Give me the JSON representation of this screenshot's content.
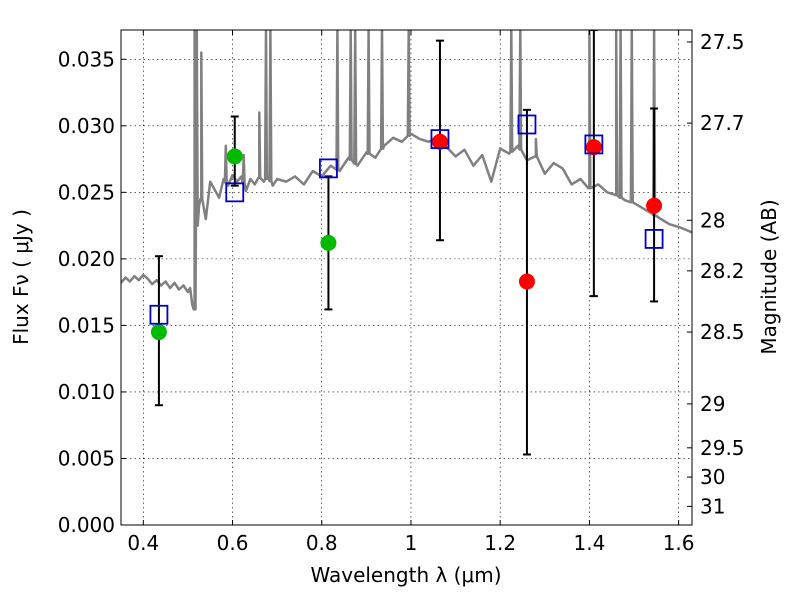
{
  "chart_data": {
    "type": "scatter",
    "xlabel": "Wavelength  λ (μm)",
    "ylabel": "Flux  Fν  ( μJy )",
    "y2label": "Magnitude (AB)",
    "xlim": [
      0.35,
      1.63
    ],
    "ylim": [
      0.0,
      0.0372
    ],
    "x_ticks": [
      "0.4",
      "0.6",
      "0.8",
      "1",
      "1.2",
      "1.4",
      "1.6"
    ],
    "x_tick_values": [
      0.4,
      0.6,
      0.8,
      1.0,
      1.2,
      1.4,
      1.6
    ],
    "y_ticks": [
      "0.000",
      "0.005",
      "0.010",
      "0.015",
      "0.020",
      "0.025",
      "0.030",
      "0.035"
    ],
    "y_tick_values": [
      0.0,
      0.005,
      0.01,
      0.015,
      0.02,
      0.025,
      0.03,
      0.035
    ],
    "y2_ticks": [
      {
        "label": "27.5",
        "flux": 0.0363
      },
      {
        "label": "27.7",
        "flux": 0.0302
      },
      {
        "label": "28",
        "flux": 0.0229
      },
      {
        "label": "28.2",
        "flux": 0.0191
      },
      {
        "label": "28.5",
        "flux": 0.0145
      },
      {
        "label": "29",
        "flux": 0.0091
      },
      {
        "label": "29.5",
        "flux": 0.0058
      },
      {
        "label": "30",
        "flux": 0.0036
      },
      {
        "label": "31",
        "flux": 0.0014
      }
    ],
    "grid": true,
    "sed_color": "#808080",
    "sed_x": [
      0.35,
      0.36,
      0.37,
      0.38,
      0.39,
      0.4,
      0.41,
      0.42,
      0.43,
      0.44,
      0.45,
      0.46,
      0.47,
      0.48,
      0.49,
      0.5,
      0.505,
      0.51,
      0.515,
      0.52,
      0.525,
      0.53,
      0.54,
      0.55,
      0.56,
      0.57,
      0.58,
      0.59,
      0.6,
      0.61,
      0.62,
      0.63,
      0.64,
      0.65,
      0.66,
      0.67,
      0.68,
      0.69,
      0.7,
      0.72,
      0.74,
      0.76,
      0.78,
      0.8,
      0.82,
      0.84,
      0.86,
      0.88,
      0.9,
      0.92,
      0.94,
      0.96,
      0.98,
      1.0,
      1.02,
      1.04,
      1.06,
      1.08,
      1.1,
      1.12,
      1.14,
      1.16,
      1.18,
      1.2,
      1.22,
      1.24,
      1.26,
      1.28,
      1.3,
      1.32,
      1.34,
      1.36,
      1.38,
      1.4,
      1.42,
      1.44,
      1.46,
      1.48,
      1.5,
      1.52,
      1.54,
      1.56,
      1.58,
      1.6,
      1.63
    ],
    "sed_y": [
      0.0182,
      0.0186,
      0.0183,
      0.0187,
      0.0184,
      0.0188,
      0.0185,
      0.0181,
      0.0184,
      0.018,
      0.0183,
      0.0178,
      0.0182,
      0.0177,
      0.018,
      0.0175,
      0.0178,
      0.0165,
      0.0162,
      0.0225,
      0.024,
      0.0245,
      0.023,
      0.0258,
      0.0252,
      0.0246,
      0.026,
      0.0255,
      0.0263,
      0.0258,
      0.0262,
      0.0251,
      0.026,
      0.0256,
      0.0261,
      0.0258,
      0.0262,
      0.0255,
      0.026,
      0.0258,
      0.0262,
      0.0256,
      0.0266,
      0.0262,
      0.027,
      0.0266,
      0.0276,
      0.027,
      0.028,
      0.0276,
      0.0285,
      0.0291,
      0.0288,
      0.0294,
      0.029,
      0.0288,
      0.0292,
      0.0284,
      0.0277,
      0.0282,
      0.027,
      0.0278,
      0.0258,
      0.0283,
      0.0279,
      0.0285,
      0.0274,
      0.0277,
      0.0264,
      0.0272,
      0.0268,
      0.0256,
      0.026,
      0.0253,
      0.0256,
      0.025,
      0.0248,
      0.0244,
      0.0242,
      0.0238,
      0.0234,
      0.023,
      0.0226,
      0.0224,
      0.022
    ],
    "sed_spikes": [
      {
        "x": 0.515,
        "peak": 0.0372
      },
      {
        "x": 0.52,
        "peak": 0.0372
      },
      {
        "x": 0.53,
        "peak": 0.0355
      },
      {
        "x": 0.585,
        "peak": 0.0285
      },
      {
        "x": 0.625,
        "peak": 0.0278
      },
      {
        "x": 0.66,
        "peak": 0.031
      },
      {
        "x": 0.675,
        "peak": 0.0372
      },
      {
        "x": 0.685,
        "peak": 0.0372
      },
      {
        "x": 0.835,
        "peak": 0.0372
      },
      {
        "x": 0.865,
        "peak": 0.0372
      },
      {
        "x": 0.875,
        "peak": 0.0372
      },
      {
        "x": 0.905,
        "peak": 0.0372
      },
      {
        "x": 0.935,
        "peak": 0.0372
      },
      {
        "x": 0.995,
        "peak": 0.0372
      },
      {
        "x": 1.225,
        "peak": 0.0372
      },
      {
        "x": 1.245,
        "peak": 0.0372
      },
      {
        "x": 1.28,
        "peak": 0.029
      },
      {
        "x": 1.4,
        "peak": 0.0372
      },
      {
        "x": 1.46,
        "peak": 0.0372
      },
      {
        "x": 1.47,
        "peak": 0.0372
      },
      {
        "x": 1.495,
        "peak": 0.0372
      },
      {
        "x": 1.545,
        "peak": 0.0372
      }
    ],
    "errorbars": [
      {
        "x": 0.435,
        "low": 0.009,
        "high": 0.0202
      },
      {
        "x": 0.605,
        "low": 0.0255,
        "high": 0.0307
      },
      {
        "x": 0.815,
        "low": 0.0162,
        "high": 0.0262
      },
      {
        "x": 1.065,
        "low": 0.0214,
        "high": 0.0364
      },
      {
        "x": 1.26,
        "low": 0.0053,
        "high": 0.0312
      },
      {
        "x": 1.41,
        "low": 0.0172,
        "high": 0.0372
      },
      {
        "x": 1.545,
        "low": 0.0168,
        "high": 0.0313
      }
    ],
    "series": [
      {
        "marker": "circle",
        "color": "#00bb00",
        "x": [
          0.435,
          0.605,
          0.815
        ],
        "y": [
          0.0145,
          0.0277,
          0.0212
        ]
      },
      {
        "marker": "circle",
        "color": "#ff0000",
        "x": [
          1.065,
          1.26,
          1.41,
          1.545
        ],
        "y": [
          0.0288,
          0.0183,
          0.0284,
          0.024
        ]
      },
      {
        "marker": "square-open",
        "color": "#0000cc",
        "x": [
          0.435,
          0.605,
          0.815,
          1.065,
          1.26,
          1.41,
          1.545
        ],
        "y": [
          0.0158,
          0.025,
          0.0268,
          0.029,
          0.0301,
          0.0286,
          0.0215
        ]
      }
    ]
  }
}
